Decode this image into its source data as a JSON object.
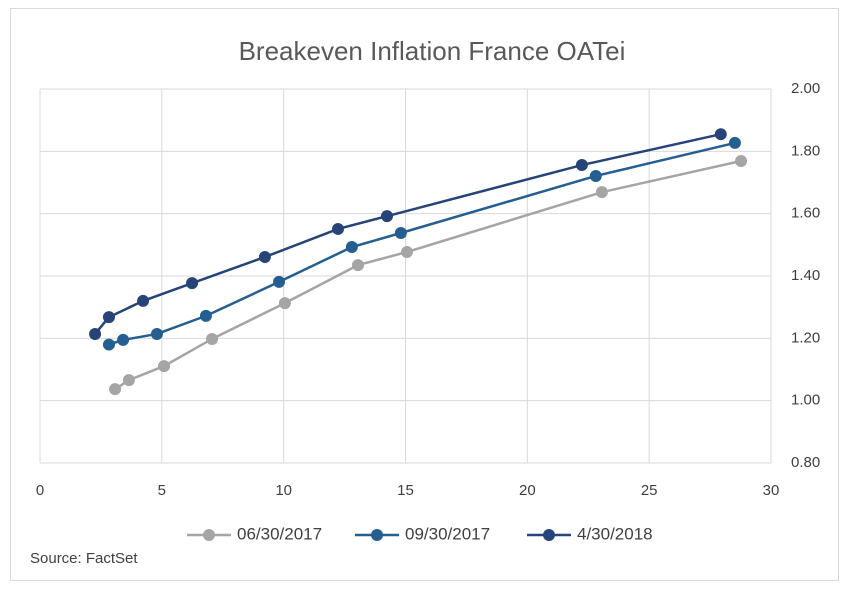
{
  "chart_data": {
    "type": "line",
    "title": "Breakeven Inflation France OATei",
    "series": [
      {
        "name": "06/30/2017",
        "color": "#a5a5a5",
        "x": [
          3.08,
          3.65,
          5.09,
          7.06,
          10.05,
          13.05,
          15.06,
          23.06,
          28.77
        ],
        "values": [
          1.037,
          1.066,
          1.111,
          1.198,
          1.313,
          1.435,
          1.477,
          1.669,
          1.769
        ]
      },
      {
        "name": "09/30/2017",
        "color": "#255e91",
        "x": [
          2.83,
          3.41,
          4.8,
          6.81,
          9.81,
          12.8,
          14.81,
          22.81,
          28.52
        ],
        "values": [
          1.18,
          1.195,
          1.214,
          1.272,
          1.381,
          1.493,
          1.538,
          1.721,
          1.827
        ]
      },
      {
        "name": "4/30/2018",
        "color": "#264478",
        "x": [
          2.26,
          2.83,
          4.23,
          6.24,
          9.23,
          12.23,
          14.24,
          22.24,
          27.94
        ],
        "values": [
          1.214,
          1.268,
          1.32,
          1.377,
          1.461,
          1.551,
          1.592,
          1.756,
          1.855
        ]
      }
    ],
    "xlim": [
      0,
      30
    ],
    "xticks": [
      0,
      5,
      10,
      15,
      20,
      25,
      30
    ],
    "ylim": [
      0.8,
      2.0
    ],
    "yticks": [
      {
        "value": 0.8,
        "label": "0.80"
      },
      {
        "value": 1.0,
        "label": "1.00"
      },
      {
        "value": 1.2,
        "label": "1.20"
      },
      {
        "value": 1.4,
        "label": "1.40"
      },
      {
        "value": 1.6,
        "label": "1.60"
      },
      {
        "value": 1.8,
        "label": "1.80"
      },
      {
        "value": 2.0,
        "label": "2.00"
      }
    ],
    "grid": true,
    "legend": "bottom",
    "source": "Source: FactSet"
  }
}
